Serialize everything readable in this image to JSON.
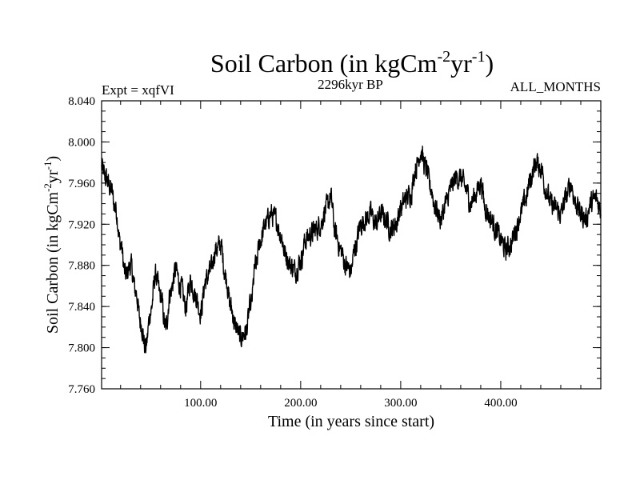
{
  "chart_data": {
    "type": "line",
    "title": "Soil Carbon (in kgCm",
    "title_sup1": "-2",
    "title_mid": "yr",
    "title_sup2": "-1",
    "title_end": ")",
    "subtitle_left": "Expt = xqfVI",
    "subtitle_center": "2296kyr BP",
    "subtitle_right": "ALL_MONTHS",
    "xlabel": "Time (in years since start)",
    "ylabel": "Soil Carbon (in kgCm",
    "ylabel_sup1": "-2",
    "ylabel_mid": "yr",
    "ylabel_sup2": "-1",
    "ylabel_end": ")",
    "xlim": [
      1,
      500
    ],
    "ylim": [
      7.76,
      8.04
    ],
    "xticks": [
      100,
      200,
      300,
      400
    ],
    "xtick_labels": [
      "100.00",
      "200.00",
      "300.00",
      "400.00"
    ],
    "yticks": [
      7.76,
      7.8,
      7.84,
      7.88,
      7.92,
      7.96,
      8.0,
      8.04
    ],
    "ytick_labels": [
      "7.760",
      "7.800",
      "7.840",
      "7.880",
      "7.920",
      "7.960",
      "8.000",
      "8.040"
    ],
    "grid": false,
    "series": [
      {
        "name": "Soil Carbon",
        "color": "#000000",
        "anchors_x": [
          1,
          5,
          10,
          15,
          20,
          25,
          30,
          35,
          40,
          45,
          50,
          55,
          60,
          65,
          70,
          75,
          80,
          85,
          90,
          95,
          100,
          105,
          110,
          115,
          120,
          125,
          130,
          135,
          140,
          145,
          150,
          155,
          160,
          165,
          170,
          175,
          180,
          185,
          190,
          195,
          200,
          205,
          210,
          215,
          220,
          225,
          230,
          235,
          240,
          245,
          250,
          255,
          260,
          265,
          270,
          275,
          280,
          285,
          290,
          295,
          300,
          305,
          310,
          315,
          320,
          325,
          330,
          335,
          340,
          345,
          350,
          355,
          360,
          365,
          370,
          375,
          380,
          385,
          390,
          395,
          400,
          405,
          410,
          415,
          420,
          425,
          430,
          435,
          440,
          445,
          450,
          455,
          460,
          465,
          470,
          475,
          480,
          485,
          490,
          495,
          500
        ],
        "anchors_y": [
          7.975,
          7.965,
          7.955,
          7.935,
          7.9,
          7.87,
          7.88,
          7.855,
          7.825,
          7.8,
          7.835,
          7.87,
          7.85,
          7.82,
          7.855,
          7.875,
          7.86,
          7.84,
          7.865,
          7.85,
          7.835,
          7.865,
          7.875,
          7.895,
          7.9,
          7.87,
          7.84,
          7.82,
          7.81,
          7.815,
          7.84,
          7.88,
          7.905,
          7.92,
          7.93,
          7.925,
          7.91,
          7.89,
          7.88,
          7.875,
          7.885,
          7.905,
          7.91,
          7.915,
          7.92,
          7.935,
          7.945,
          7.91,
          7.895,
          7.88,
          7.875,
          7.9,
          7.92,
          7.925,
          7.93,
          7.92,
          7.93,
          7.925,
          7.915,
          7.92,
          7.935,
          7.945,
          7.95,
          7.975,
          7.99,
          7.975,
          7.955,
          7.935,
          7.925,
          7.94,
          7.955,
          7.965,
          7.965,
          7.955,
          7.94,
          7.95,
          7.96,
          7.935,
          7.925,
          7.915,
          7.905,
          7.895,
          7.9,
          7.915,
          7.93,
          7.945,
          7.965,
          7.98,
          7.975,
          7.955,
          7.94,
          7.935,
          7.93,
          7.945,
          7.96,
          7.94,
          7.93,
          7.925,
          7.94,
          7.945,
          7.935
        ],
        "noise_amplitude": 0.012,
        "points": 2000
      }
    ]
  }
}
